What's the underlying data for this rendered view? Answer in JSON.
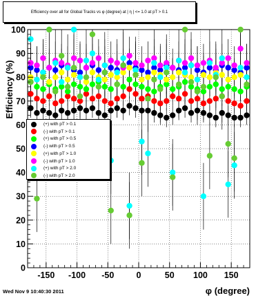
{
  "chart_data": {
    "type": "scatter",
    "title": "Efficiency over all for Global Tracks vs φ (degree) at | η | <= 1.0 at pT > 0.1",
    "xlabel": "φ (degree)",
    "ylabel": "Efficiency (%)",
    "xlim": [
      -180,
      180
    ],
    "ylim": [
      0,
      100
    ],
    "xticks": [
      -150,
      -100,
      -50,
      0,
      50,
      100,
      150
    ],
    "yticks": [
      0,
      10,
      20,
      30,
      40,
      50,
      60,
      70,
      80,
      90,
      100
    ],
    "grid": true,
    "legend_placement": "center-left",
    "x": [
      -175,
      -165,
      -155,
      -145,
      -135,
      -125,
      -115,
      -105,
      -95,
      -85,
      -75,
      -65,
      -55,
      -45,
      -35,
      -25,
      -15,
      -5,
      5,
      15,
      25,
      35,
      45,
      55,
      65,
      75,
      85,
      95,
      105,
      115,
      125,
      135,
      145,
      155,
      165,
      175
    ],
    "series": [
      {
        "name": "(+) with pT > 0.1",
        "color": "#000000",
        "values": [
          67,
          65,
          66,
          65,
          64,
          66,
          65,
          66,
          67,
          66,
          67,
          65,
          64,
          66,
          67,
          66,
          68,
          67,
          66,
          66,
          65,
          64,
          63,
          64,
          66,
          67,
          65,
          66,
          65,
          64,
          63,
          65,
          64,
          63,
          63,
          64
        ]
      },
      {
        "name": "(-) with pT > 0.1",
        "color": "#ff0000",
        "values": [
          73,
          71,
          70,
          72,
          69,
          70,
          72,
          71,
          70,
          73,
          71,
          72,
          70,
          69,
          71,
          72,
          75,
          73,
          71,
          72,
          70,
          69,
          70,
          72,
          71,
          73,
          70,
          71,
          69,
          70,
          71,
          72,
          70,
          69,
          68,
          70
        ]
      },
      {
        "name": "(+) with pT > 0.5",
        "color": "#00ff00",
        "values": [
          78,
          76,
          75,
          77,
          75,
          76,
          74,
          77,
          76,
          75,
          77,
          78,
          76,
          75,
          77,
          76,
          79,
          77,
          76,
          75,
          74,
          76,
          77,
          75,
          76,
          78,
          76,
          75,
          74,
          76,
          77,
          75,
          76,
          75,
          74,
          76
        ]
      },
      {
        "name": "(-) with pT > 0.5",
        "color": "#0000ff",
        "values": [
          84,
          83,
          82,
          84,
          83,
          85,
          84,
          83,
          82,
          84,
          85,
          83,
          82,
          84,
          83,
          85,
          86,
          84,
          83,
          82,
          84,
          83,
          85,
          84,
          83,
          84,
          85,
          83,
          82,
          84,
          83,
          85,
          84,
          83,
          82,
          84
        ]
      },
      {
        "name": "(+) with pT > 1.0",
        "color": "#ffff00",
        "values": [
          80,
          79,
          81,
          78,
          80,
          82,
          79,
          81,
          80,
          78,
          82,
          80,
          79,
          81,
          80,
          82,
          84,
          81,
          79,
          80,
          82,
          81,
          79,
          80,
          82,
          81,
          80,
          79,
          81,
          80,
          82,
          81,
          79,
          80,
          81,
          80
        ]
      },
      {
        "name": "(-) with pT > 1.0",
        "color": "#ff00ff",
        "values": [
          86,
          85,
          88,
          84,
          87,
          86,
          85,
          88,
          87,
          84,
          86,
          88,
          85,
          87,
          86,
          84,
          89,
          86,
          85,
          87,
          88,
          85,
          86,
          84,
          87,
          86,
          88,
          85,
          86,
          87,
          84,
          86,
          88,
          85,
          92,
          86
        ]
      },
      {
        "name": "(+) with pT > 2.0",
        "color": "#00ffff",
        "values": [
          96,
          79,
          82,
          100,
          86,
          78,
          84,
          100,
          80,
          87,
          90,
          79,
          85,
          45,
          82,
          88,
          26,
          83,
          53,
          48,
          86,
          80,
          84,
          40,
          87,
          82,
          85,
          79,
          30,
          86,
          81,
          88,
          35,
          43,
          84,
          80
        ]
      },
      {
        "name": "(-) with pT > 2.0",
        "color": "#66cc33",
        "values": [
          78,
          29,
          80,
          100,
          74,
          89,
          76,
          84,
          72,
          80,
          98,
          76,
          82,
          24,
          77,
          85,
          22,
          81,
          44,
          71,
          79,
          75,
          82,
          38,
          77,
          100,
          78,
          74,
          76,
          47,
          80,
          72,
          52,
          46,
          100,
          77
        ]
      }
    ]
  },
  "legend": {
    "items": [
      {
        "label": "(+) with pT > 0.1",
        "color": "#000000"
      },
      {
        "label": "(-) with pT > 0.1",
        "color": "#ff0000"
      },
      {
        "label": "(+) with pT > 0.5",
        "color": "#00ff00"
      },
      {
        "label": "(-) with pT > 0.5",
        "color": "#0000ff"
      },
      {
        "label": "(+) with pT > 1.0",
        "color": "#ffff00"
      },
      {
        "label": "(-) with pT > 1.0",
        "color": "#ff00ff"
      },
      {
        "label": "(+) with pT > 2.0",
        "color": "#00ffff"
      },
      {
        "label": "(-) with pT > 2.0",
        "color": "#66cc33"
      }
    ]
  },
  "footer": {
    "timestamp": "Wed Nov  9 10:40:30 2011"
  }
}
